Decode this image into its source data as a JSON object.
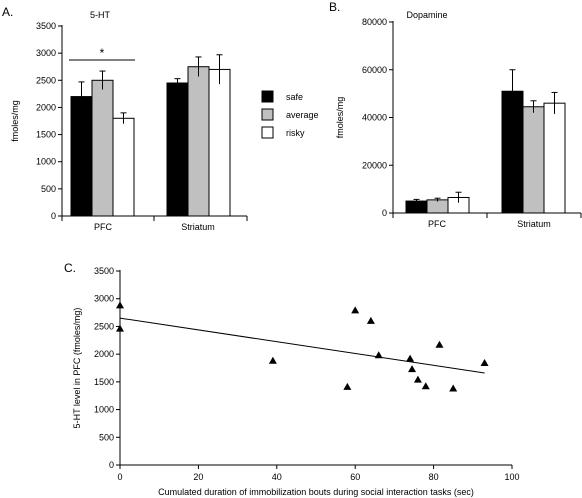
{
  "chart_data": [
    {
      "panel_label": "A.",
      "type": "bar",
      "title": "5-HT",
      "ylabel": "fmoles/mg",
      "ylim": [
        0,
        3500
      ],
      "yticks": [
        0,
        500,
        1000,
        1500,
        2000,
        2500,
        3000,
        3500
      ],
      "categories": [
        "PFC",
        "Striatum"
      ],
      "series": [
        {
          "name": "safe",
          "color": "#000000",
          "values": [
            2200,
            2450
          ],
          "errors": [
            270,
            80
          ]
        },
        {
          "name": "average",
          "color": "#c0c0c0",
          "values": [
            2500,
            2750
          ],
          "errors": [
            170,
            180
          ]
        },
        {
          "name": "risky",
          "color": "#ffffff",
          "values": [
            1800,
            2700
          ],
          "errors": [
            100,
            270
          ]
        }
      ],
      "annotation": "*",
      "legend_position": "right"
    },
    {
      "panel_label": "B.",
      "type": "bar",
      "title": "Dopamine",
      "ylabel": "fmoles/mg",
      "ylim": [
        0,
        80000
      ],
      "yticks": [
        0,
        20000,
        40000,
        60000,
        80000
      ],
      "categories": [
        "PFC",
        "Striatum"
      ],
      "series": [
        {
          "name": "safe",
          "color": "#000000",
          "values": [
            5000,
            51000
          ],
          "errors": [
            700,
            9000
          ]
        },
        {
          "name": "average",
          "color": "#c0c0c0",
          "values": [
            5500,
            44500
          ],
          "errors": [
            700,
            2500
          ]
        },
        {
          "name": "risky",
          "color": "#ffffff",
          "values": [
            6500,
            46000
          ],
          "errors": [
            2200,
            4500
          ]
        }
      ]
    },
    {
      "panel_label": "C.",
      "type": "scatter",
      "xlabel": "Cumulated duration of immobilization bouts during social interaction tasks (sec)",
      "ylabel": "5-HT level in PFC (fmoles/mg)",
      "xlim": [
        0,
        100
      ],
      "ylim": [
        0,
        3500
      ],
      "xticks": [
        0,
        20,
        40,
        60,
        80,
        100
      ],
      "yticks": [
        0,
        500,
        1000,
        1500,
        2000,
        2500,
        3000,
        3500
      ],
      "points": [
        {
          "x": 0,
          "y": 2880
        },
        {
          "x": 0,
          "y": 2460
        },
        {
          "x": 39,
          "y": 1880
        },
        {
          "x": 58,
          "y": 1410
        },
        {
          "x": 60,
          "y": 2790
        },
        {
          "x": 64,
          "y": 2600
        },
        {
          "x": 66,
          "y": 1980
        },
        {
          "x": 74,
          "y": 1920
        },
        {
          "x": 74.5,
          "y": 1730
        },
        {
          "x": 76,
          "y": 1540
        },
        {
          "x": 78,
          "y": 1420
        },
        {
          "x": 81.5,
          "y": 2170
        },
        {
          "x": 85,
          "y": 1380
        },
        {
          "x": 93,
          "y": 1840
        }
      ],
      "trendline": {
        "x": [
          0,
          93
        ],
        "y": [
          2650,
          1660
        ]
      }
    }
  ]
}
